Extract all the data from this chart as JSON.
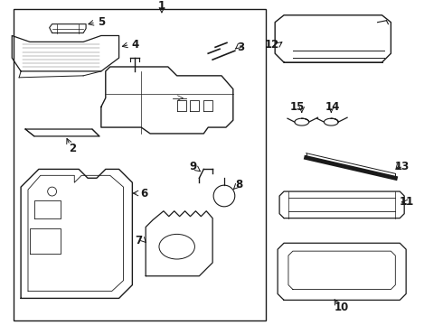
{
  "bg_color": "#ffffff",
  "line_color": "#1a1a1a",
  "lw": 0.9,
  "fontsize": 8.5
}
